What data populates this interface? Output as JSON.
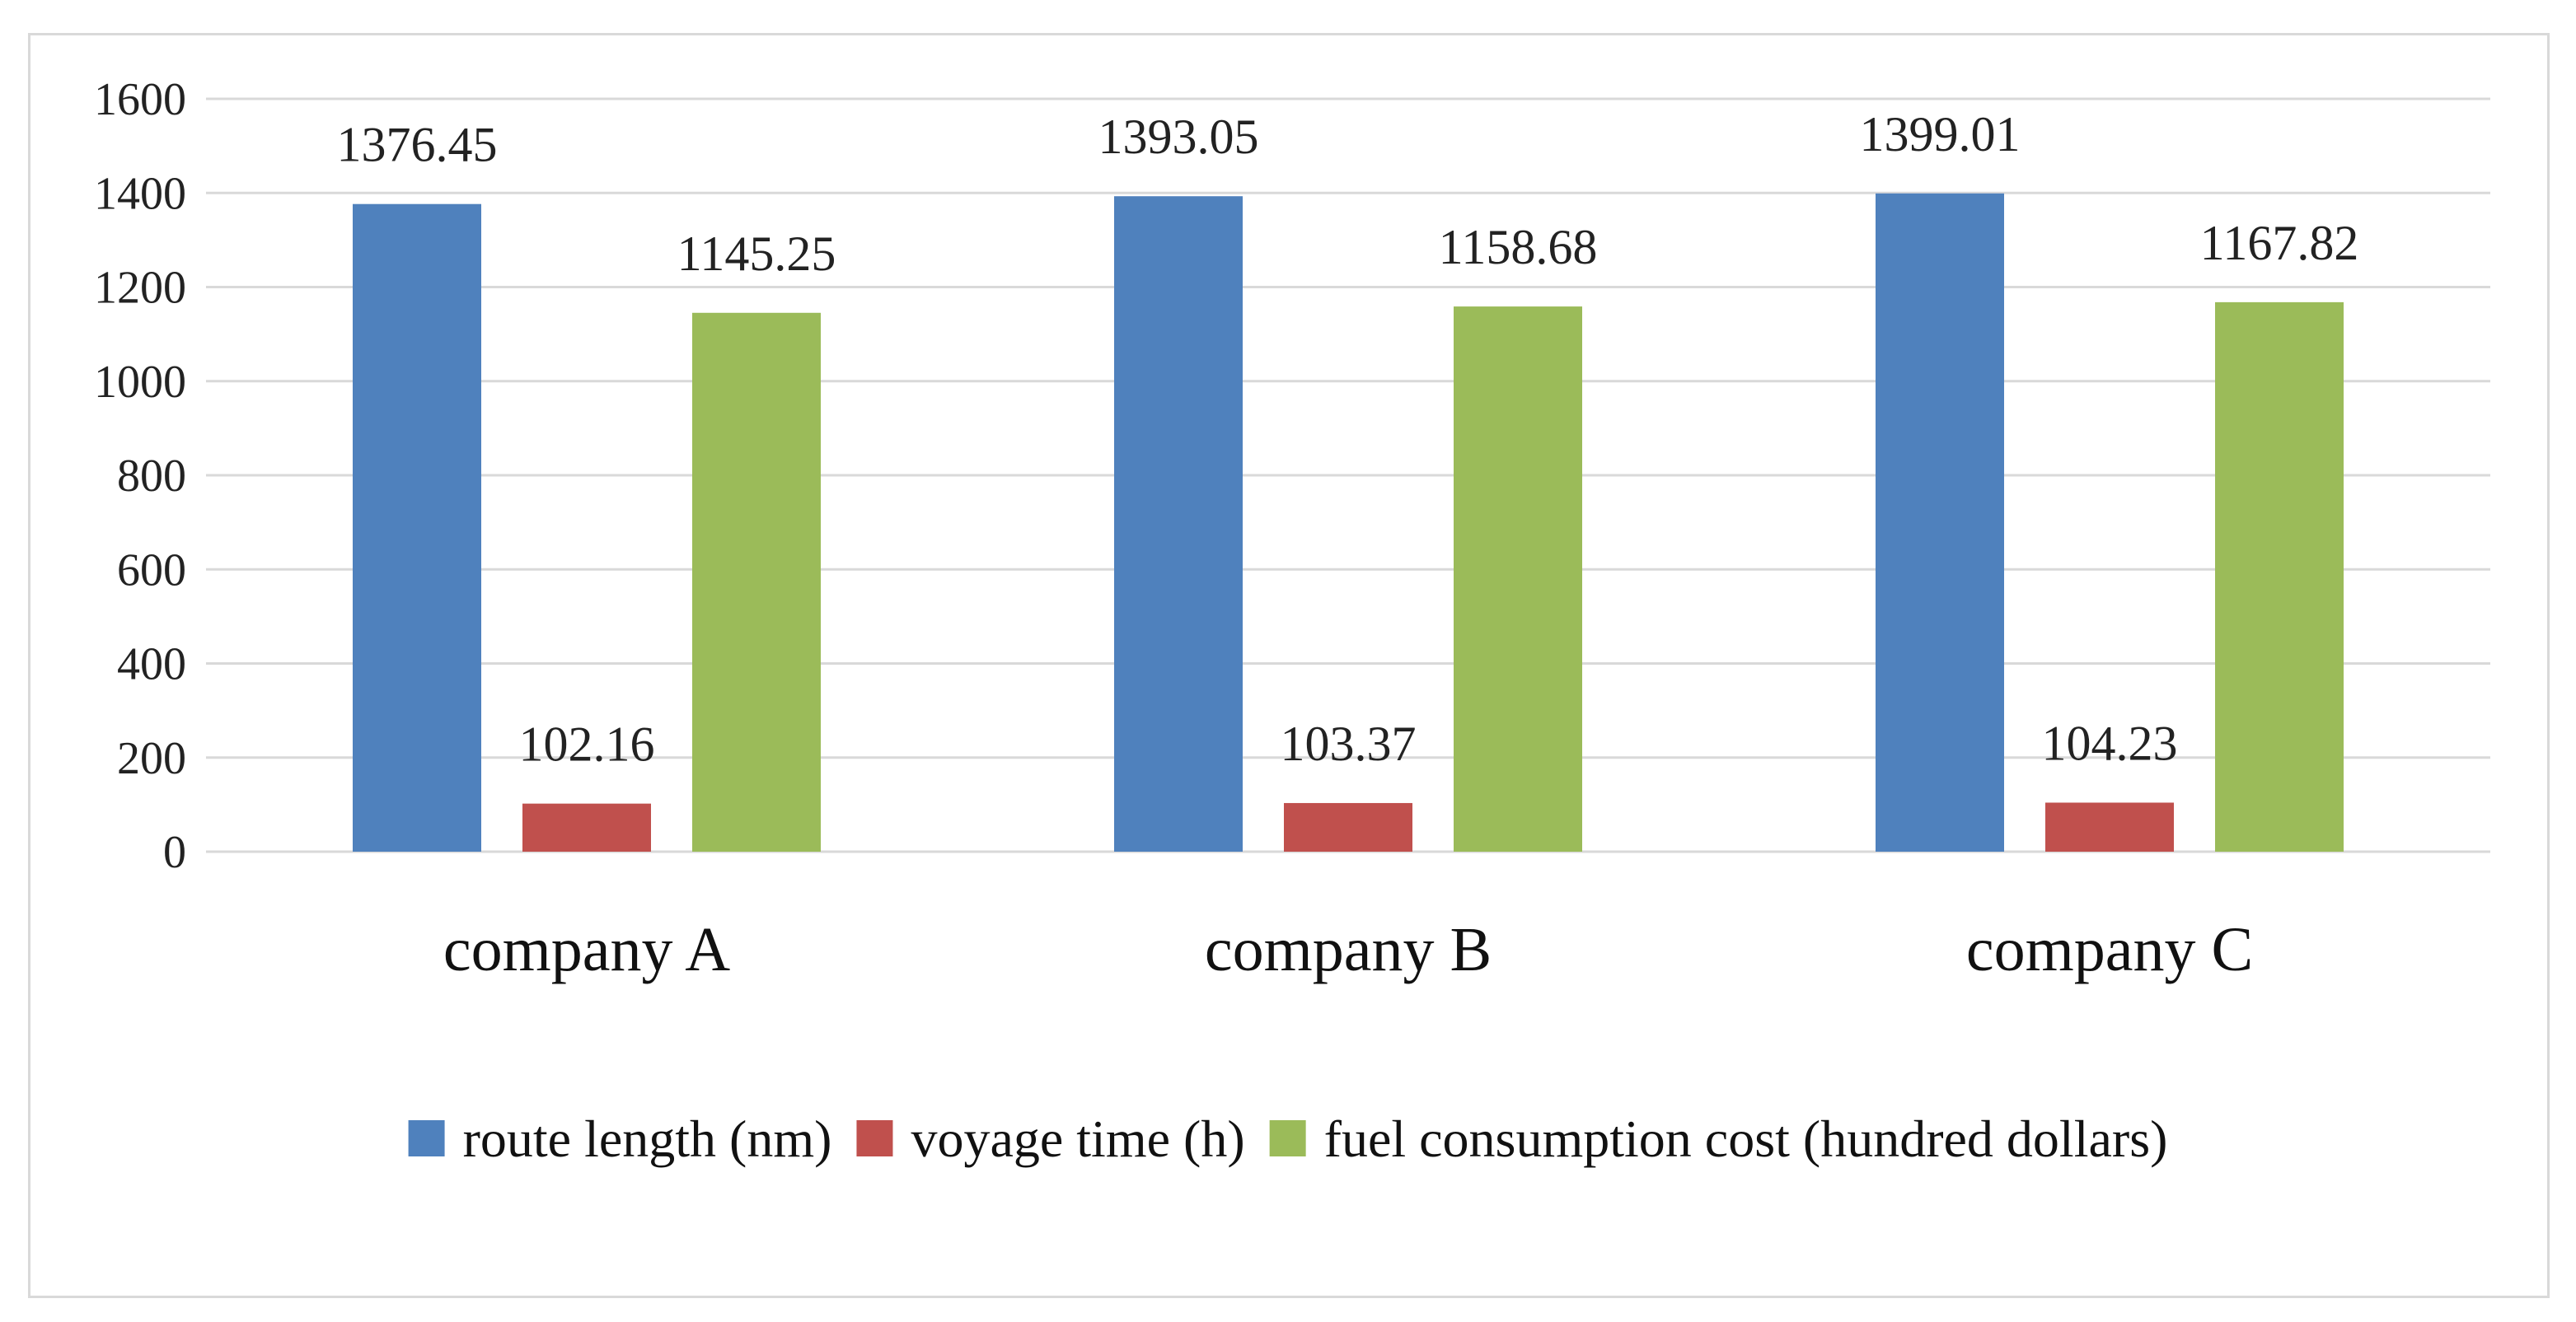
{
  "chart_data": {
    "type": "bar",
    "title": "",
    "xlabel": "",
    "ylabel": "",
    "ylim": [
      0,
      1600
    ],
    "yticks": [
      0,
      200,
      400,
      600,
      800,
      1000,
      1200,
      1400,
      1600
    ],
    "grid": true,
    "legend_position": "bottom",
    "categories": [
      "company A",
      "company B",
      "company C"
    ],
    "series": [
      {
        "name": "route length (nm)",
        "color": "#4f81bd",
        "values": [
          1376.45,
          1393.05,
          1399.01
        ],
        "labels": [
          "1376.45",
          "1393.05",
          "1399.01"
        ]
      },
      {
        "name": "voyage time (h)",
        "color": "#c0504d",
        "values": [
          102.16,
          103.37,
          104.23
        ],
        "labels": [
          "102.16",
          "103.37",
          "104.23"
        ]
      },
      {
        "name": "fuel consumption cost (hundred dollars)",
        "color": "#9bbb59",
        "values": [
          1145.25,
          1158.68,
          1167.82
        ],
        "labels": [
          "1145.25",
          "1158.68",
          "1167.82"
        ]
      }
    ]
  }
}
